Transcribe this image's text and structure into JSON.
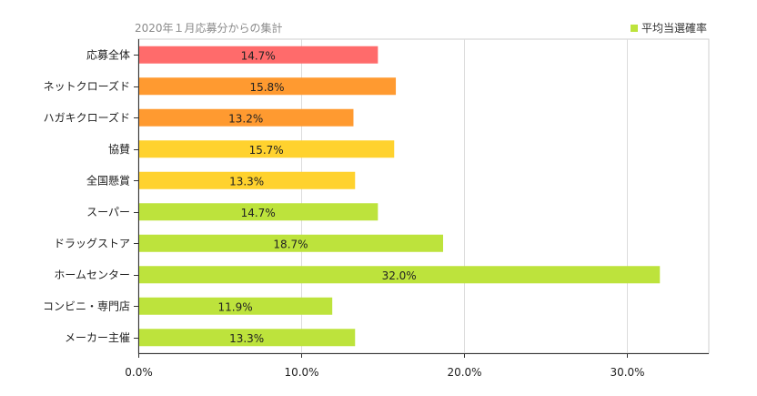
{
  "chart_data": {
    "type": "bar",
    "orientation": "horizontal",
    "subtitle": "2020年１月応募分からの集計",
    "legend": {
      "label": "平均当選確率",
      "color": "#bde33c",
      "placement": "top-right"
    },
    "xlim": [
      0,
      35
    ],
    "x_ticks": [
      0,
      10,
      20,
      30
    ],
    "x_tick_labels": [
      "0.0%",
      "10.0%",
      "20.0%",
      "30.0%"
    ],
    "grid": true,
    "categories": [
      "応募全体",
      "ネットクローズド",
      "ハガキクローズド",
      "協賛",
      "全国懸賞",
      "スーパー",
      "ドラッグストア",
      "ホームセンター",
      "コンビニ・専門店",
      "メーカー主催"
    ],
    "values": [
      14.7,
      15.8,
      13.2,
      15.7,
      13.3,
      14.7,
      18.7,
      32.0,
      11.9,
      13.3
    ],
    "value_labels": [
      "14.7%",
      "15.8%",
      "13.2%",
      "15.7%",
      "13.3%",
      "14.7%",
      "18.7%",
      "32.0%",
      "11.9%",
      "13.3%"
    ],
    "colors": [
      "#ff6b6b",
      "#ff9a30",
      "#ff9a30",
      "#ffd22e",
      "#ffd22e",
      "#bde33c",
      "#bde33c",
      "#bde33c",
      "#bde33c",
      "#bde33c"
    ]
  }
}
